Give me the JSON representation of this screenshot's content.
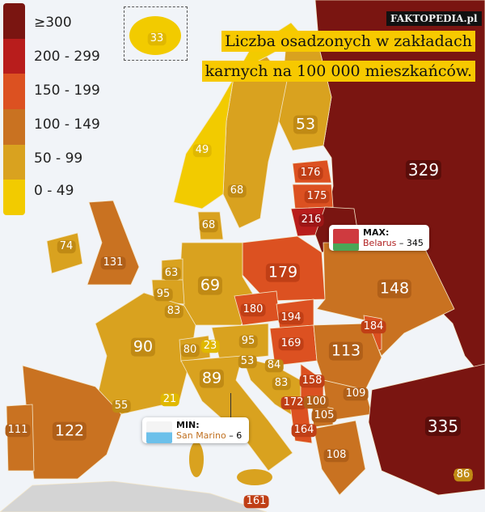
{
  "brand": "FAKTOPEDIA.pl",
  "title": {
    "line1": "Liczba osadzonych w zakładach",
    "line2": "karnych na 100 000 mieszkańców."
  },
  "legend": [
    {
      "label": "≥300",
      "color": "#7a1511"
    },
    {
      "label": "200 - 299",
      "color": "#b81d1c"
    },
    {
      "label": "150 - 199",
      "color": "#dc5121"
    },
    {
      "label": "100 - 149",
      "color": "#c97221"
    },
    {
      "label": "50 - 99",
      "color": "#d9a21f"
    },
    {
      "label": "0 - 49",
      "color": "#f2cb00"
    }
  ],
  "max": {
    "heading": "MAX:",
    "country": "Belarus",
    "value": "345"
  },
  "min": {
    "heading": "MIN:",
    "country": "San Marino",
    "value": "6"
  },
  "values": [
    "33",
    "49",
    "68",
    "53",
    "329",
    "176",
    "175",
    "216",
    "68",
    "74",
    "131",
    "63",
    "69",
    "95",
    "83",
    "179",
    "148",
    "180",
    "194",
    "184",
    "90",
    "80",
    "23",
    "95",
    "169",
    "113",
    "53",
    "84",
    "83",
    "158",
    "89",
    "21",
    "55",
    "109",
    "172",
    "100",
    "105",
    "164",
    "111",
    "122",
    "335",
    "108",
    "86",
    "161"
  ]
}
